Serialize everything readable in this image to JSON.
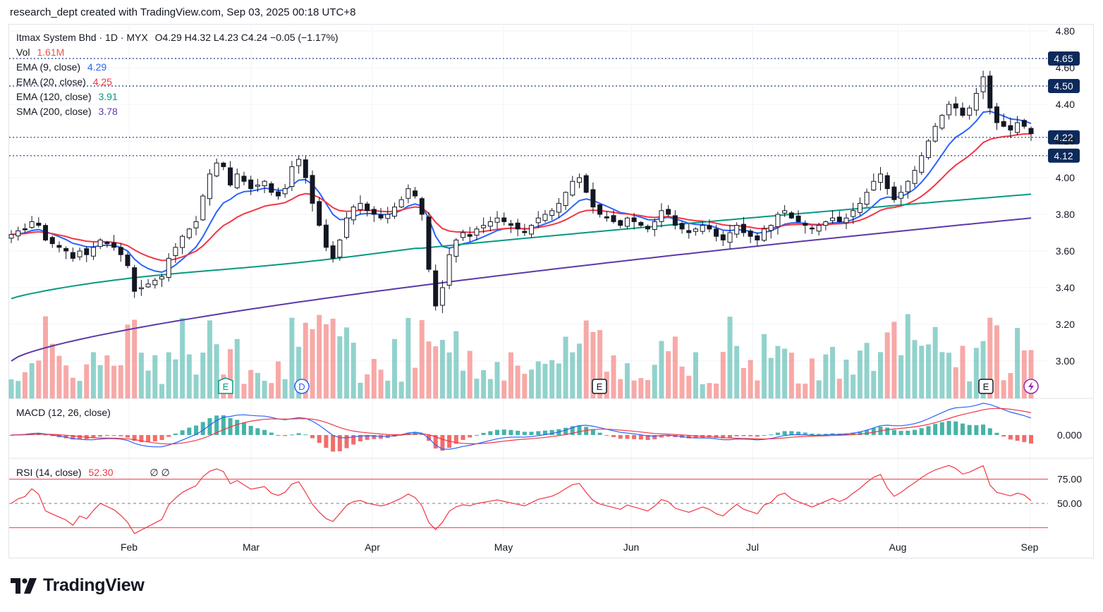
{
  "header": "research_dept created with TradingView.com, Sep 03, 2025 00:18 UTC+8",
  "brand": "TradingView",
  "legend": {
    "symbol": "Itmax System Bhd · 1D · MYX",
    "ohlc": "O4.29  H4.32  L4.23  C4.24  −0.05 (−1.17%)",
    "vol_label": "Vol",
    "vol_value": "1.61M",
    "ema9_label": "EMA (9, close)",
    "ema9_value": "4.29",
    "ema20_label": "EMA (20, close)",
    "ema20_value": "4.25",
    "ema120_label": "EMA (120, close)",
    "ema120_value": "3.91",
    "sma200_label": "SMA (200, close)",
    "sma200_value": "3.78",
    "macd_label": "MACD (12, 26, close)",
    "rsi_label": "RSI (14, close)",
    "rsi_value": "52.30",
    "rsi_extra": "∅  ∅"
  },
  "colors": {
    "up": "#26a69a",
    "down": "#ef5350",
    "candle": "#131722",
    "ema9": "#2962ff",
    "ema20": "#f23645",
    "ema120": "#089981",
    "sma200": "#5b3aa8",
    "hline": "#1e3a8a",
    "price_tag": "#0c2a5b",
    "rsi": "#f23645",
    "macd": "#2962ff",
    "signal": "#f23645"
  },
  "chart_data": {
    "type": "candlestick",
    "interval": "1D",
    "x_axis_labels": [
      "Feb",
      "Mar",
      "Apr",
      "May",
      "Jun",
      "Jul",
      "Aug",
      "Sep"
    ],
    "price_axis_ticks": [
      "4.80",
      "4.60",
      "4.40",
      "4.20",
      "4.00",
      "3.80",
      "3.60",
      "3.40",
      "3.20",
      "3.00"
    ],
    "price_ylim": [
      2.8,
      4.85
    ],
    "horizontal_levels": [
      {
        "value": 4.65,
        "label": "4.65"
      },
      {
        "value": 4.5,
        "label": "4.50"
      },
      {
        "value": 4.22,
        "label": "4.22"
      },
      {
        "value": 4.12,
        "label": "4.12"
      }
    ],
    "ohlc_close_series": [
      3.69,
      3.71,
      3.72,
      3.76,
      3.74,
      3.66,
      3.64,
      3.62,
      3.6,
      3.56,
      3.6,
      3.58,
      3.62,
      3.66,
      3.64,
      3.62,
      3.58,
      3.52,
      3.38,
      3.4,
      3.42,
      3.44,
      3.46,
      3.56,
      3.62,
      3.68,
      3.72,
      3.76,
      3.9,
      4.02,
      4.08,
      4.06,
      3.96,
      4.02,
      3.98,
      3.94,
      3.96,
      3.98,
      3.92,
      3.9,
      3.94,
      4.06,
      4.1,
      4.0,
      3.86,
      3.74,
      3.62,
      3.56,
      3.66,
      3.78,
      3.84,
      3.86,
      3.82,
      3.8,
      3.78,
      3.8,
      3.84,
      3.88,
      3.94,
      3.9,
      3.8,
      3.5,
      3.3,
      3.4,
      3.58,
      3.66,
      3.7,
      3.68,
      3.72,
      3.74,
      3.76,
      3.78,
      3.76,
      3.74,
      3.72,
      3.7,
      3.74,
      3.78,
      3.8,
      3.82,
      3.86,
      3.92,
      3.98,
      4.0,
      3.92,
      3.84,
      3.8,
      3.78,
      3.76,
      3.74,
      3.78,
      3.76,
      3.74,
      3.72,
      3.76,
      3.82,
      3.8,
      3.74,
      3.72,
      3.7,
      3.72,
      3.74,
      3.72,
      3.68,
      3.66,
      3.7,
      3.74,
      3.7,
      3.68,
      3.66,
      3.72,
      3.74,
      3.8,
      3.82,
      3.78,
      3.76,
      3.74,
      3.72,
      3.74,
      3.76,
      3.78,
      3.76,
      3.78,
      3.82,
      3.86,
      3.92,
      3.98,
      4.02,
      3.94,
      3.88,
      3.92,
      3.98,
      4.04,
      4.12,
      4.2,
      4.28,
      4.34,
      4.4,
      4.38,
      4.34,
      4.38,
      4.46,
      4.55,
      4.38,
      4.3,
      4.28,
      4.26,
      4.3,
      4.28,
      4.24
    ],
    "ema9": 4.29,
    "ema20": 4.25,
    "ema120": 3.91,
    "sma200": 3.78,
    "volume_last": "1.61M",
    "event_markers": [
      {
        "label": "E",
        "category": "Feb"
      },
      {
        "label": "D",
        "category": "Mar"
      },
      {
        "label": "E",
        "category": "Jun"
      },
      {
        "label": "E",
        "category": "Aug"
      }
    ],
    "macd": {
      "zero_label": "0.000"
    },
    "rsi": {
      "ticks": [
        "75.00",
        "50.00"
      ],
      "value": 52.3,
      "overbought": 70,
      "oversold": 30,
      "midline": 50
    }
  }
}
